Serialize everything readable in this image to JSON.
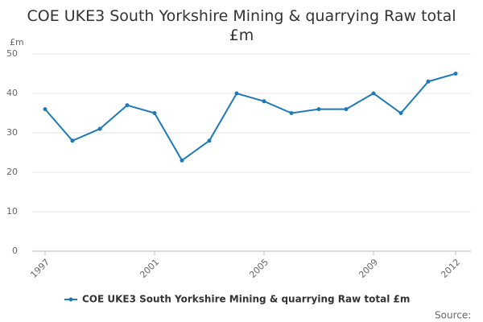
{
  "chart_data": {
    "type": "line",
    "title": "COE UKE3 South Yorkshire Mining & quarrying Raw total £m",
    "y_label": "£m",
    "x": [
      1997,
      1998,
      1999,
      2000,
      2001,
      2002,
      2003,
      2004,
      2005,
      2006,
      2007,
      2008,
      2009,
      2010,
      2011,
      2012
    ],
    "series": [
      {
        "name": "COE UKE3 South Yorkshire Mining & quarrying Raw total £m",
        "color": "#1f7ab8",
        "values": [
          36,
          28,
          31,
          37,
          35,
          23,
          28,
          40,
          38,
          35,
          36,
          36,
          40,
          35,
          43,
          45
        ]
      }
    ],
    "xlim": [
      1997,
      2012
    ],
    "xticks": [
      1997,
      2001,
      2005,
      2009,
      2012
    ],
    "ylim": [
      0,
      50
    ],
    "yticks": [
      0,
      10,
      20,
      30,
      40,
      50
    ],
    "grid": true,
    "legend": "bottom",
    "source": "Source:"
  }
}
